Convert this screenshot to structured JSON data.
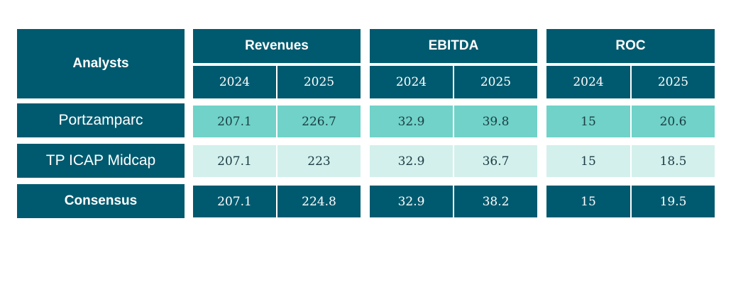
{
  "table": {
    "corner_label": "Analysts",
    "groups": [
      {
        "label": "Revenues",
        "years": [
          "2024",
          "2025"
        ]
      },
      {
        "label": "EBITDA",
        "years": [
          "2024",
          "2025"
        ]
      },
      {
        "label": "ROC",
        "years": [
          "2024",
          "2025"
        ]
      }
    ],
    "rows": [
      {
        "label": "Portzamparc",
        "values": [
          "207.1",
          "226.7",
          "32.9",
          "39.8",
          "15",
          "20.6"
        ]
      },
      {
        "label": "TP ICAP Midcap",
        "values": [
          "207.1",
          "223",
          "32.9",
          "36.7",
          "15",
          "18.5"
        ]
      },
      {
        "label": "Consensus",
        "values": [
          "207.1",
          "224.8",
          "32.9",
          "38.2",
          "15",
          "19.5"
        ]
      }
    ]
  },
  "colors": {
    "header_dark": "#005a6f",
    "row_highlight": "#70d2c8",
    "row_light": "#d3f0ec",
    "text_dark": "#1b3d45",
    "text_light": "#ffffff"
  }
}
